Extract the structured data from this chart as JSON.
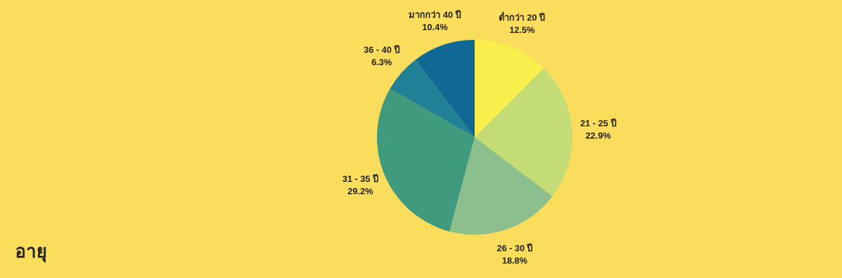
{
  "chart_data": {
    "type": "pie",
    "title": "อายุ",
    "categories": [
      "ต่ำกว่า 20 ปี",
      "21 - 25 ปี",
      "26 - 30 ปี",
      "31 - 35 ปี",
      "36 - 40 ปี",
      "มากกว่า 40 ปี"
    ],
    "values": [
      12.5,
      22.9,
      18.8,
      29.2,
      6.3,
      10.4
    ],
    "value_labels": [
      "12.5%",
      "22.9%",
      "18.8%",
      "29.2%",
      "6.3%",
      "10.4%"
    ],
    "colors": [
      "#f8ef4c",
      "#c3dc76",
      "#8cbf8e",
      "#3f9a7e",
      "#1f8096",
      "#106995"
    ]
  }
}
